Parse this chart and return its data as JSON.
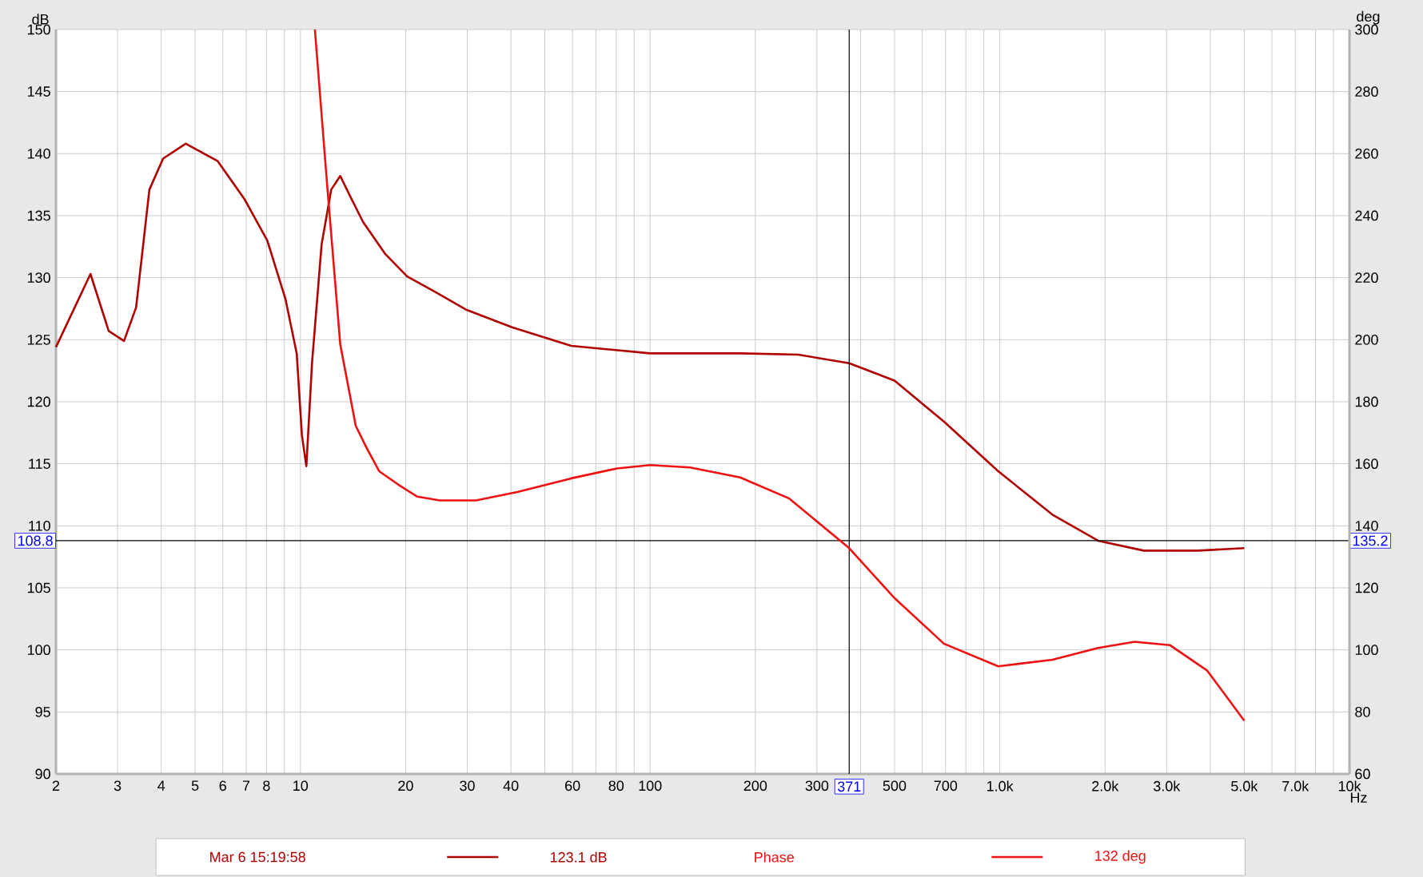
{
  "chart_data": {
    "type": "line",
    "ylabel": "dB",
    "y2label": "deg",
    "log": "x",
    "grid": true,
    "legend": "bottom",
    "xlim": [
      2,
      10000
    ],
    "ylim": [
      90,
      150
    ],
    "y2lim": [
      60,
      300
    ],
    "xticks": [
      2,
      3,
      4,
      5,
      6,
      7,
      8,
      {
        "value": 9,
        "label": null
      },
      10,
      20,
      30,
      40,
      {
        "value": 50,
        "label": null
      },
      60,
      {
        "value": 70,
        "label": null
      },
      80,
      {
        "value": 90,
        "label": null
      },
      100,
      200,
      300,
      {
        "value": 400,
        "label": null
      },
      500,
      {
        "value": 600,
        "label": null
      },
      700,
      {
        "value": 800,
        "label": null
      },
      {
        "value": 900,
        "label": null
      },
      {
        "value": 1000,
        "label": "1.0k"
      },
      {
        "value": 2000,
        "label": "2.0k"
      },
      {
        "value": 3000,
        "label": "3.0k"
      },
      {
        "value": 4000,
        "label": null
      },
      {
        "value": 5000,
        "label": "5.0k"
      },
      {
        "value": 6000,
        "label": null
      },
      {
        "value": 7000,
        "label": "7.0k"
      },
      {
        "value": 8000,
        "label": null
      },
      {
        "value": 9000,
        "label": null
      },
      {
        "value": 10000,
        "label": "10k"
      }
    ],
    "xlabel": "Hz",
    "yticks": [
      90,
      95,
      100,
      105,
      110,
      115,
      120,
      125,
      130,
      135,
      140,
      145,
      150
    ],
    "y2ticks": [
      60,
      80,
      100,
      120,
      140,
      160,
      180,
      200,
      220,
      240,
      260,
      280,
      300
    ],
    "series": [
      {
        "name": "Mar 6 15:19:58",
        "color": "#b00000",
        "x": [
          2,
          2.51,
          2.83,
          3.13,
          3.39,
          3.7,
          4.05,
          4.7,
          5.8,
          6.93,
          8.04,
          9.06,
          9.76,
          10.1,
          10.4,
          10.8,
          11.5,
          12.25,
          13,
          13.8,
          15.1,
          17.5,
          20.2,
          24.1,
          29.9,
          40.3,
          59.5,
          100,
          181,
          265,
          371,
          500,
          692,
          990,
          1414,
          1910,
          2580,
          3690,
          5000
        ],
        "values": [
          124.4,
          130.3,
          125.7,
          124.9,
          127.6,
          137.1,
          139.6,
          140.8,
          139.4,
          136.3,
          133,
          128.3,
          123.9,
          117.3,
          114.8,
          123.2,
          132.7,
          137.1,
          138.2,
          136.7,
          134.5,
          131.9,
          130.1,
          128.9,
          127.4,
          126,
          124.5,
          123.9,
          123.9,
          123.8,
          123.1,
          121.7,
          118.4,
          114.4,
          110.9,
          108.8,
          108,
          108,
          108.2
        ]
      },
      {
        "name": "Phase",
        "color": "#f01010",
        "axis": "y2",
        "x": [
          11,
          11.9,
          13,
          14.4,
          15.5,
          16.8,
          19.1,
          21.6,
          25,
          31.8,
          41.7,
          59.5,
          80.4,
          100,
          130,
          181,
          250,
          371,
          500,
          692,
          990,
          1414,
          1910,
          2430,
          3070,
          3920,
          5000
        ],
        "values": [
          300,
          251.2,
          198.5,
          172.2,
          164.9,
          157.6,
          153.2,
          149.4,
          148.2,
          148.2,
          150.9,
          155.3,
          158.5,
          159.6,
          158.8,
          155.6,
          148.8,
          132.8,
          116.7,
          102,
          94.7,
          96.8,
          100.6,
          102.6,
          101.5,
          93.3,
          77.2
        ]
      }
    ],
    "ref_lines": [
      {
        "axis": "x",
        "value": 371,
        "label": "371"
      },
      {
        "axis": "y",
        "value": 108.8,
        "label": "108.8"
      }
    ],
    "annotations": [
      "123.1 dB",
      "132 deg",
      {
        "text": "135.2",
        "x": 10000,
        "y": 108.8
      }
    ]
  }
}
